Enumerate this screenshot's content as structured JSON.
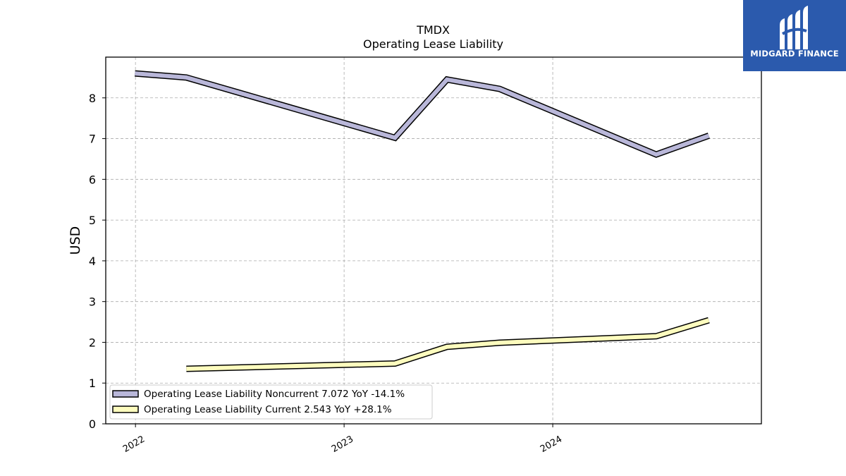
{
  "brand": {
    "name": "MIDGARD FINANCE",
    "color": "#2b5aad"
  },
  "chart_data": {
    "type": "line",
    "title": "TMDX",
    "subtitle": "Operating Lease Liability",
    "ylabel": "USD",
    "xlabel": "",
    "ylim": [
      0,
      9
    ],
    "yticks": [
      0,
      1,
      2,
      3,
      4,
      5,
      6,
      7,
      8
    ],
    "xlim": [
      "2021-11-10",
      "2024-12-31"
    ],
    "xticks": [
      {
        "date": "2022-01-01",
        "label": "2022"
      },
      {
        "date": "2023-01-01",
        "label": "2023"
      },
      {
        "date": "2024-01-01",
        "label": "2024"
      }
    ],
    "grid": true,
    "legend_position": "lower-left",
    "series": [
      {
        "name": "Operating Lease Liability Noncurrent",
        "legend_label": "Operating Lease Liability Noncurrent  7.072 YoY -14.1%",
        "color": "#b9b7d9",
        "points": [
          {
            "x": "2021-12-31",
            "y": 8.6
          },
          {
            "x": "2022-03-31",
            "y": 8.5
          },
          {
            "x": "2023-03-31",
            "y": 7.02
          },
          {
            "x": "2023-06-30",
            "y": 8.45
          },
          {
            "x": "2023-09-30",
            "y": 8.22
          },
          {
            "x": "2024-06-30",
            "y": 6.61
          },
          {
            "x": "2024-09-30",
            "y": 7.072
          }
        ]
      },
      {
        "name": "Operating Lease Liability Current",
        "legend_label": "Operating Lease Liability Current  2.543 YoY +28.1%",
        "color": "#fdfcbe",
        "points": [
          {
            "x": "2022-03-31",
            "y": 1.35
          },
          {
            "x": "2023-03-31",
            "y": 1.48
          },
          {
            "x": "2023-06-30",
            "y": 1.89
          },
          {
            "x": "2023-09-30",
            "y": 1.99
          },
          {
            "x": "2024-06-30",
            "y": 2.15
          },
          {
            "x": "2024-09-30",
            "y": 2.543
          }
        ]
      }
    ]
  }
}
